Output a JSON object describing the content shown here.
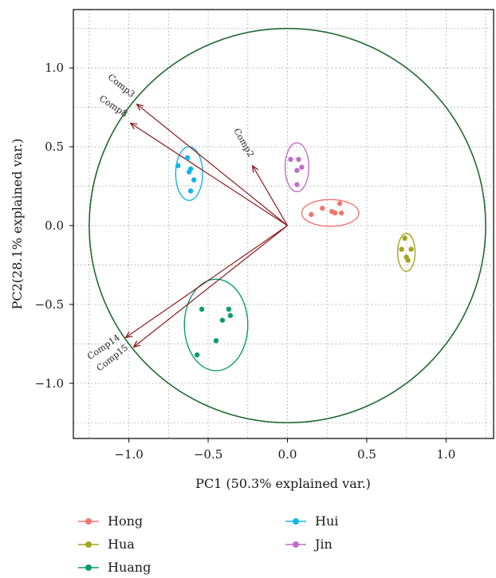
{
  "chart_data": {
    "type": "scatter",
    "title": "",
    "xlabel": "PC1 (50.3% explained var.)",
    "ylabel": "PC2(28.1% explained var.)",
    "xlim": [
      -1.35,
      1.3
    ],
    "ylim": [
      -1.35,
      1.37
    ],
    "x_ticks": [
      -1.0,
      -0.5,
      0.0,
      0.5,
      1.0
    ],
    "x_tick_labels": [
      "−1.0",
      "−0.5",
      "0.0",
      "0.5",
      "1.0"
    ],
    "y_ticks": [
      1.0,
      0.5,
      0.0,
      -0.5,
      -1.0
    ],
    "y_tick_labels": [
      "1.0",
      "0.5",
      "0.0",
      "−0.5",
      "−1.0"
    ],
    "grid": true,
    "legend_position": "bottom",
    "circle": {
      "cx": 0.0,
      "cy": 0.0,
      "r": 1.25,
      "color": "#1f6b2e"
    },
    "arrow_color": "#8b1a1a",
    "series": [
      {
        "name": "Hong",
        "color": "#f0766d",
        "points": [
          [
            0.15,
            0.07
          ],
          [
            0.22,
            0.11
          ],
          [
            0.28,
            0.09
          ],
          [
            0.33,
            0.14
          ],
          [
            0.3,
            0.08
          ],
          [
            0.34,
            0.08
          ]
        ],
        "ellipse": {
          "cx": 0.27,
          "cy": 0.08,
          "rx": 0.18,
          "ry": 0.085
        }
      },
      {
        "name": "Hua",
        "color": "#a3a520",
        "points": [
          [
            0.74,
            -0.08
          ],
          [
            0.72,
            -0.15
          ],
          [
            0.78,
            -0.15
          ],
          [
            0.75,
            -0.2
          ],
          [
            0.76,
            -0.22
          ]
        ],
        "ellipse": {
          "cx": 0.75,
          "cy": -0.17,
          "rx": 0.055,
          "ry": 0.12
        }
      },
      {
        "name": "Huang",
        "color": "#0b9b6e",
        "points": [
          [
            -0.54,
            -0.53
          ],
          [
            -0.37,
            -0.53
          ],
          [
            -0.36,
            -0.57
          ],
          [
            -0.41,
            -0.6
          ],
          [
            -0.45,
            -0.73
          ],
          [
            -0.57,
            -0.82
          ]
        ],
        "ellipse": {
          "cx": -0.45,
          "cy": -0.63,
          "rx": 0.2,
          "ry": 0.29
        }
      },
      {
        "name": "Hui",
        "color": "#12b5e8",
        "points": [
          [
            -0.69,
            0.38
          ],
          [
            -0.63,
            0.43
          ],
          [
            -0.61,
            0.36
          ],
          [
            -0.62,
            0.34
          ],
          [
            -0.59,
            0.29
          ],
          [
            -0.61,
            0.22
          ]
        ],
        "ellipse": {
          "cx": -0.62,
          "cy": 0.33,
          "rx": 0.085,
          "ry": 0.17
        }
      },
      {
        "name": "Jin",
        "color": "#c16ec9",
        "points": [
          [
            0.02,
            0.42
          ],
          [
            0.07,
            0.42
          ],
          [
            0.09,
            0.37
          ],
          [
            0.06,
            0.35
          ],
          [
            0.06,
            0.26
          ]
        ],
        "ellipse": {
          "cx": 0.06,
          "cy": 0.37,
          "rx": 0.075,
          "ry": 0.155
        }
      }
    ],
    "loadings": [
      {
        "name": "Comp3",
        "x": -0.95,
        "y": 0.77
      },
      {
        "name": "Comp8",
        "x": -0.99,
        "y": 0.65
      },
      {
        "name": "Comp2",
        "x": -0.22,
        "y": 0.38
      },
      {
        "name": "Comp14",
        "x": -1.02,
        "y": -0.71
      },
      {
        "name": "Comp15",
        "x": -0.97,
        "y": -0.77
      }
    ]
  }
}
